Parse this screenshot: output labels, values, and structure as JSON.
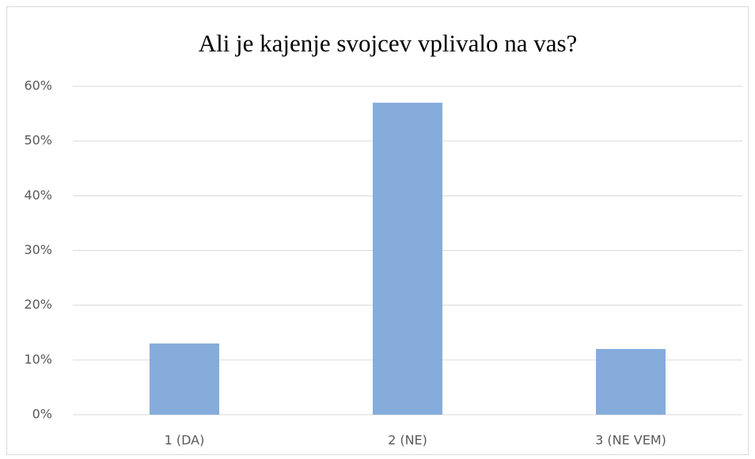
{
  "chart_data": {
    "type": "bar",
    "title": "Ali je kajenje svojcev vplivalo na vas?",
    "categories": [
      "1 (DA)",
      "2 (NE)",
      "3 (NE VEM)"
    ],
    "values": [
      13,
      57,
      12
    ],
    "color": "#86acdb",
    "ylim": [
      0,
      60
    ],
    "yticks": [
      {
        "value": 0,
        "label": "0%"
      },
      {
        "value": 10,
        "label": "10%"
      },
      {
        "value": 20,
        "label": "20%"
      },
      {
        "value": 30,
        "label": "30%"
      },
      {
        "value": 40,
        "label": "40%"
      },
      {
        "value": 50,
        "label": "50%"
      },
      {
        "value": 60,
        "label": "60%"
      }
    ],
    "grid": true
  }
}
